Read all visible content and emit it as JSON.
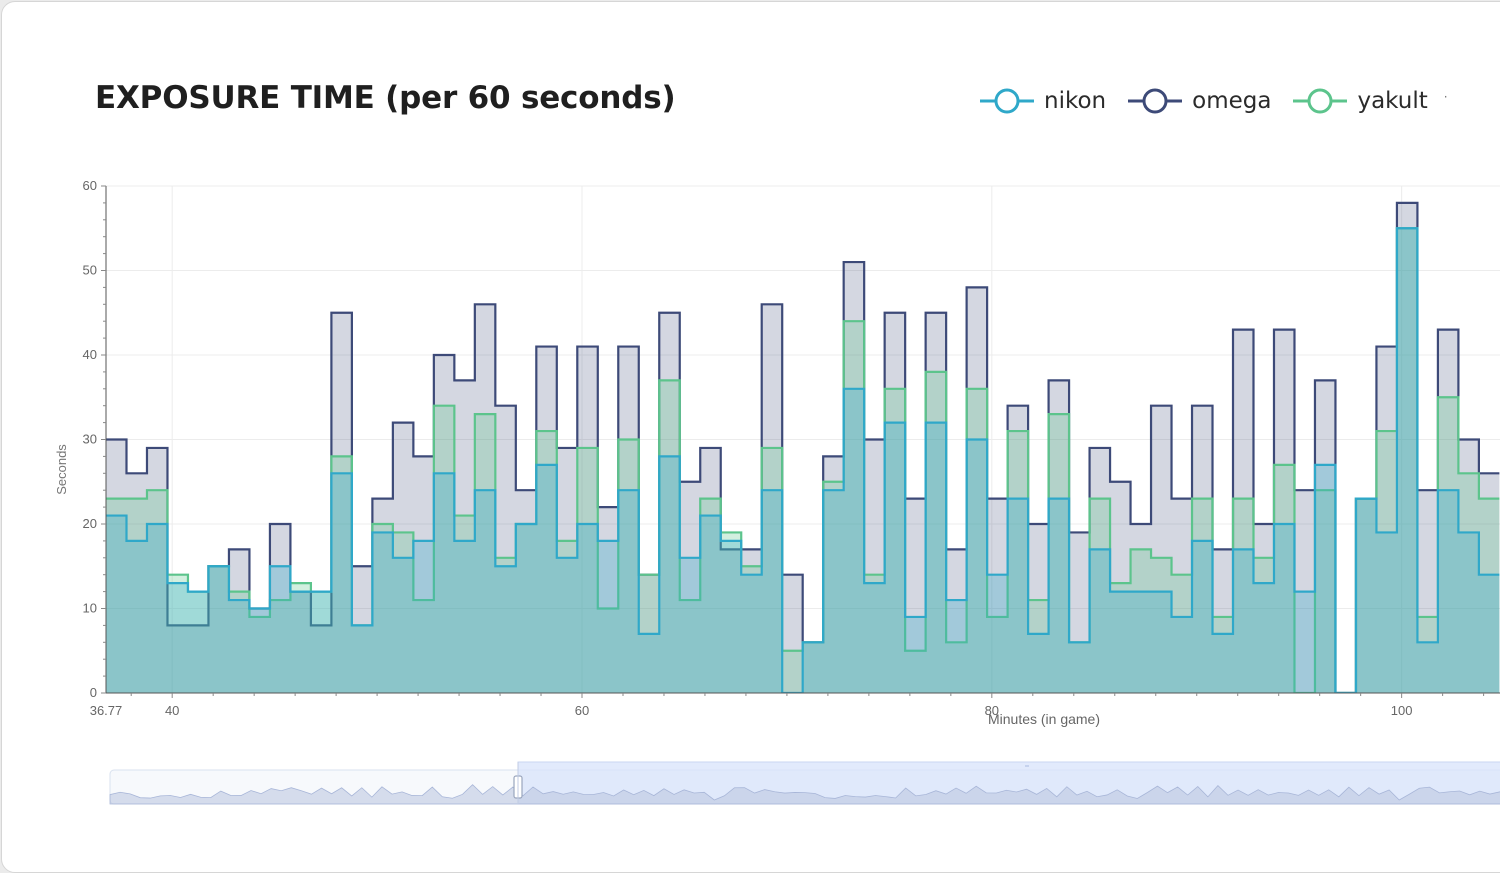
{
  "chart_data": {
    "type": "line",
    "step": true,
    "title": "EXPOSURE TIME (per 60 seconds)",
    "xlabel": "Minutes (in game)",
    "ylabel": "Seconds",
    "xlim": [
      36.77,
      104.8
    ],
    "ylim": [
      0,
      60
    ],
    "yticks": [
      0,
      10,
      20,
      30,
      40,
      50,
      60
    ],
    "xticks": [
      {
        "value": 36.77,
        "label": "36.77"
      },
      {
        "value": 40,
        "label": "40"
      },
      {
        "value": 60,
        "label": "60"
      },
      {
        "value": 80,
        "label": "80"
      },
      {
        "value": 100,
        "label": "100"
      }
    ],
    "grid": true,
    "legend_position": "top-right",
    "x": [
      36.77,
      37.77,
      38.77,
      39.77,
      40.77,
      41.77,
      42.77,
      43.77,
      44.77,
      45.77,
      46.77,
      47.77,
      48.77,
      49.77,
      50.77,
      51.77,
      52.77,
      53.77,
      54.77,
      55.77,
      56.77,
      57.77,
      58.77,
      59.77,
      60.77,
      61.77,
      62.77,
      63.77,
      64.77,
      65.77,
      66.77,
      67.77,
      68.77,
      69.77,
      70.77,
      71.77,
      72.77,
      73.77,
      74.77,
      75.77,
      76.77,
      77.77,
      78.77,
      79.77,
      80.77,
      81.77,
      82.77,
      83.77,
      84.77,
      85.77,
      86.77,
      87.77,
      88.77,
      89.77,
      90.77,
      91.77,
      92.77,
      93.77,
      94.77,
      95.77,
      96.77,
      97.77,
      98.77,
      99.77,
      100.77,
      101.77,
      102.77,
      103.77
    ],
    "series": [
      {
        "name": "nikon",
        "color": "#2fa8c9",
        "values": [
          21,
          18,
          20,
          13,
          12,
          15,
          11,
          10,
          15,
          12,
          12,
          26,
          8,
          19,
          16,
          18,
          26,
          18,
          24,
          15,
          20,
          27,
          16,
          20,
          18,
          24,
          7,
          28,
          16,
          21,
          18,
          14,
          24,
          0,
          6,
          24,
          36,
          13,
          32,
          9,
          32,
          11,
          30,
          14,
          23,
          7,
          23,
          6,
          17,
          12,
          12,
          12,
          9,
          18,
          7,
          17,
          13,
          20,
          12,
          27,
          0,
          23,
          19,
          55,
          6,
          24,
          19,
          14
        ]
      },
      {
        "name": "omega",
        "color": "#3d4a78",
        "values": [
          30,
          26,
          29,
          8,
          8,
          15,
          17,
          10,
          20,
          12,
          8,
          45,
          15,
          23,
          32,
          28,
          40,
          37,
          46,
          34,
          24,
          41,
          29,
          41,
          22,
          41,
          14,
          45,
          25,
          29,
          17,
          17,
          46,
          14,
          6,
          28,
          51,
          30,
          45,
          23,
          45,
          17,
          48,
          23,
          34,
          20,
          37,
          19,
          29,
          25,
          20,
          34,
          23,
          34,
          17,
          43,
          20,
          43,
          24,
          37,
          0,
          23,
          41,
          58,
          24,
          43,
          30,
          26
        ]
      },
      {
        "name": "yakult",
        "color": "#5cc48c",
        "values": [
          23,
          23,
          24,
          14,
          12,
          15,
          12,
          9,
          11,
          13,
          12,
          28,
          8,
          20,
          19,
          11,
          34,
          21,
          33,
          16,
          20,
          31,
          18,
          29,
          10,
          30,
          14,
          37,
          11,
          23,
          19,
          15,
          29,
          5,
          6,
          25,
          44,
          14,
          36,
          5,
          38,
          6,
          36,
          9,
          31,
          11,
          33,
          6,
          23,
          13,
          17,
          16,
          14,
          23,
          9,
          23,
          16,
          27,
          0,
          24,
          0,
          23,
          31,
          55,
          9,
          35,
          26,
          23
        ]
      }
    ]
  },
  "dataZoom": {
    "start_label": "",
    "end_label": ""
  }
}
